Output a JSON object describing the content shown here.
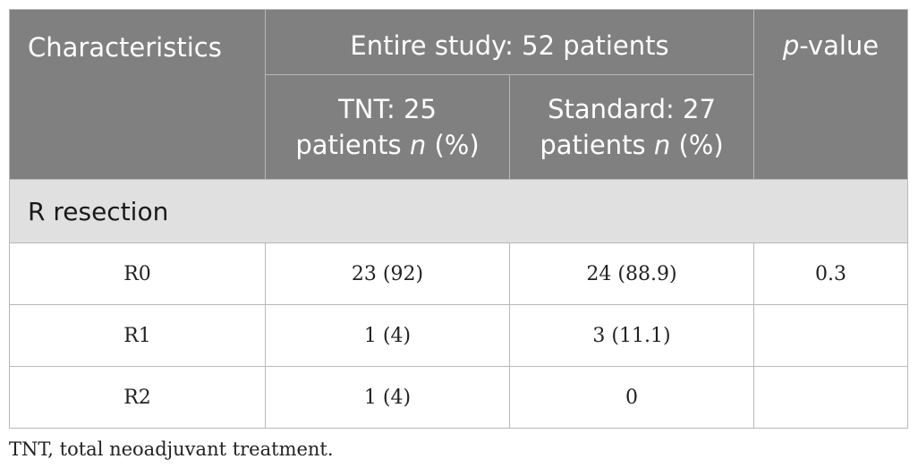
{
  "table": {
    "header": {
      "characteristics": "Characteristics",
      "entire_study": "Entire study: 52 patients",
      "p_value_prefix": "p",
      "p_value_suffix": "-value",
      "tnt_line1": "TNT: 25",
      "tnt_line2": "patients",
      "standard_line1": "Standard: 27",
      "standard_line2": "patients",
      "n_label": "n",
      "pct_label": "(%)"
    },
    "section_title": "R resection",
    "rows": [
      {
        "label": "R0",
        "tnt": "23 (92)",
        "standard": "24 (88.9)",
        "p": "0.3"
      },
      {
        "label": "R1",
        "tnt": "1 (4)",
        "standard": "3 (11.1)",
        "p": ""
      },
      {
        "label": "R2",
        "tnt": "1 (4)",
        "standard": "0",
        "p": ""
      }
    ]
  },
  "footnote": "TNT, total neoadjuvant treatment.",
  "colors": {
    "header_bg": "#808080",
    "header_text": "#ffffff",
    "section_bg": "#e0e0e0",
    "border": "#b8b8b8"
  }
}
